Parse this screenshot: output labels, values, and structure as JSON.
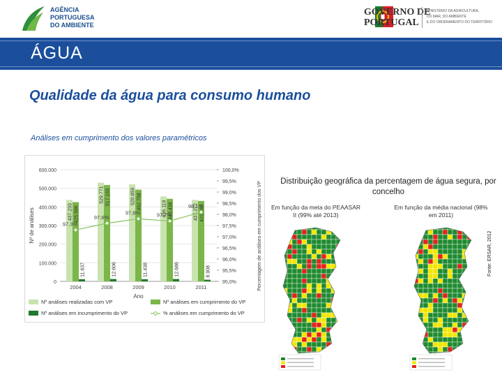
{
  "header": {
    "apa_name_lines": [
      "AGÊNCIA",
      "PORTUGUESA",
      "DO AMBIENTE"
    ],
    "gov_name_lines": [
      "GOVERNO DE",
      "PORTUGAL"
    ],
    "ministry_lines": [
      "MINISTÉRIO DA AGRICULTURA,",
      "DO MAR, DO AMBIENTE",
      "E DO ORDENAMENTO DO TERRITÓRIO"
    ]
  },
  "slide": {
    "title": "ÁGUA",
    "subtitle": "Qualidade da água para consumo humano",
    "caption": "Análises em cumprimento dos valores paramétricos"
  },
  "colors": {
    "band": "#1b4f9c",
    "bar_total": "#c9e3b0",
    "bar_ok": "#7ab648",
    "bar_fail": "#1e7a2c",
    "line": "#8ec46a"
  },
  "chart_data": {
    "type": "bar",
    "categories": [
      "2004",
      "2008",
      "2009",
      "2010",
      "2011"
    ],
    "xlabel": "Ano",
    "ylabel": "Nº de análises",
    "ylabel_right": "Percentagem de análises em cumprimento dos VP",
    "ylim": [
      0,
      600000
    ],
    "ylim_right": [
      95.0,
      100.0
    ],
    "yticks": [
      "0",
      "100.000",
      "200.000",
      "300.000",
      "400.000",
      "500.000",
      "600.000"
    ],
    "yticks_right": [
      "95,0%",
      "95,5%",
      "96,0%",
      "96,5%",
      "97,0%",
      "97,5%",
      "98,0%",
      "98,5%",
      "99,0%",
      "99,5%",
      "100,0%"
    ],
    "series": [
      {
        "name": "Nº análises realizadas com VP",
        "values": [
          437233,
          529771,
          520859,
          456119,
          437272
        ],
        "labels": [
          "437.233",
          "529.771",
          "520.859",
          "456.119",
          "437.272"
        ]
      },
      {
        "name": "Nº análises em cumprimento do VP",
        "values": [
          425586,
          517165,
          492758,
          443438,
          431869
        ],
        "labels": [
          "425.586",
          "517.165",
          "492.758",
          "443.438",
          "431.869"
        ]
      },
      {
        "name": "Nº análises em incumprimento do VP",
        "values": [
          11637,
          12606,
          11438,
          12686,
          8908
        ],
        "labels": [
          "11.637",
          "12.606",
          "11.438",
          "12.686",
          "8.908"
        ]
      },
      {
        "name": "% análises em cumprimento do VP",
        "values": [
          97.3,
          97.6,
          97.8,
          97.7,
          98.1
        ],
        "labels": [
          "97,3%",
          "97,6%",
          "97,8%",
          "97,7%",
          "98,1%"
        ],
        "axis": "right"
      }
    ],
    "legend": "bottom"
  },
  "maps": {
    "title": "Distribuição geográfica da percentagem de água segura, por concelho",
    "left_caption": "Em função da meta do PEAASAR II (99% até 2013)",
    "right_caption": "Em função da média nacional (98% em 2011)",
    "colors": {
      "high": "#1f8a2f",
      "mid": "#f2e600",
      "low": "#e2231a"
    }
  },
  "source": "Fonte: ERSAR, 2012"
}
